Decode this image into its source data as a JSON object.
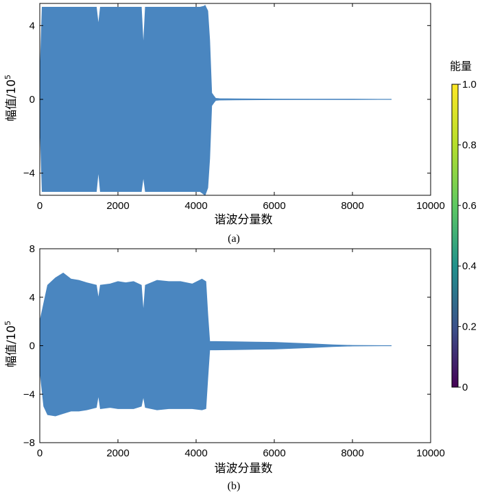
{
  "chart_data": [
    {
      "type": "area",
      "panel_label": "(a)",
      "xlabel": "谐波分量数",
      "ylabel_prefix": "幅值/10",
      "ylabel_exponent": "5",
      "xlim": [
        0,
        10000
      ],
      "ylim": [
        -5.2,
        5.2
      ],
      "xticks": [
        0,
        2000,
        4000,
        6000,
        8000,
        10000
      ],
      "yticks": [
        -4,
        0,
        4
      ],
      "ytick_labels": [
        "−4",
        "0",
        "4"
      ],
      "series_color": "#4a86c0",
      "envelope": {
        "x": [
          0,
          60,
          120,
          1450,
          1500,
          1550,
          2600,
          2650,
          2700,
          4100,
          4200,
          4230,
          4300,
          4350,
          4400,
          4450,
          4500,
          4600,
          5000,
          6000,
          7000,
          8000,
          9000
        ],
        "upper": [
          1.0,
          5.0,
          5.0,
          5.0,
          4.05,
          5.0,
          5.0,
          2.9,
          5.0,
          5.0,
          5.05,
          5.1,
          4.8,
          3.2,
          0.35,
          0.2,
          0.06,
          0.04,
          0.03,
          0.02,
          0.01,
          0.01,
          0.0
        ],
        "lower": [
          -1.0,
          -5.0,
          -5.0,
          -5.0,
          -3.9,
          -5.0,
          -5.0,
          -4.2,
          -5.0,
          -5.0,
          -5.15,
          -5.2,
          -4.8,
          -3.2,
          -0.35,
          -0.2,
          -0.06,
          -0.04,
          -0.03,
          -0.02,
          -0.01,
          -0.01,
          0.0
        ]
      }
    },
    {
      "type": "area",
      "panel_label": "(b)",
      "xlabel": "谐波分量数",
      "ylabel_prefix": "幅值/10",
      "ylabel_exponent": "5",
      "xlim": [
        0,
        10000
      ],
      "ylim": [
        -8,
        8
      ],
      "xticks": [
        0,
        2000,
        4000,
        6000,
        8000,
        10000
      ],
      "yticks": [
        -8,
        -4,
        0,
        4,
        8
      ],
      "ytick_labels": [
        "−8",
        "−4",
        "0",
        "4",
        "8"
      ],
      "series_color": "#4a86c0",
      "envelope": {
        "x": [
          0,
          100,
          200,
          400,
          600,
          800,
          1000,
          1200,
          1450,
          1500,
          1550,
          1800,
          2000,
          2200,
          2400,
          2600,
          2650,
          2700,
          3000,
          3300,
          3600,
          3900,
          4150,
          4250,
          4300,
          4350,
          4500,
          5000,
          5500,
          6000,
          6500,
          7000,
          7500,
          8000,
          8500,
          9000
        ],
        "upper": [
          2.0,
          3.5,
          5.0,
          5.6,
          6.0,
          5.5,
          5.4,
          5.2,
          5.0,
          3.9,
          5.0,
          5.1,
          5.3,
          5.2,
          5.3,
          5.0,
          2.8,
          5.0,
          5.4,
          5.3,
          5.3,
          5.1,
          5.5,
          5.3,
          2.6,
          0.35,
          0.35,
          0.33,
          0.3,
          0.28,
          0.22,
          0.15,
          0.08,
          0.03,
          0.01,
          0.0
        ],
        "lower": [
          -2.0,
          -5.0,
          -5.7,
          -5.8,
          -5.6,
          -5.4,
          -5.4,
          -5.3,
          -5.1,
          -4.1,
          -5.2,
          -5.1,
          -5.2,
          -5.2,
          -5.2,
          -5.0,
          -4.2,
          -5.1,
          -5.3,
          -5.2,
          -5.2,
          -5.2,
          -5.3,
          -5.2,
          -2.7,
          -0.35,
          -0.35,
          -0.33,
          -0.3,
          -0.28,
          -0.22,
          -0.15,
          -0.08,
          -0.03,
          -0.01,
          0.0
        ]
      }
    }
  ],
  "colorbar": {
    "title": "能量",
    "ticks": [
      0,
      0.2,
      0.4,
      0.6,
      0.8,
      1.0
    ],
    "tick_labels": [
      "0",
      "0.2",
      "0.4",
      "0.6",
      "0.8",
      "1.0"
    ],
    "colormap_stops": [
      "#440154",
      "#3b528b",
      "#21918c",
      "#5ec962",
      "#b5de2b",
      "#fde725"
    ]
  }
}
